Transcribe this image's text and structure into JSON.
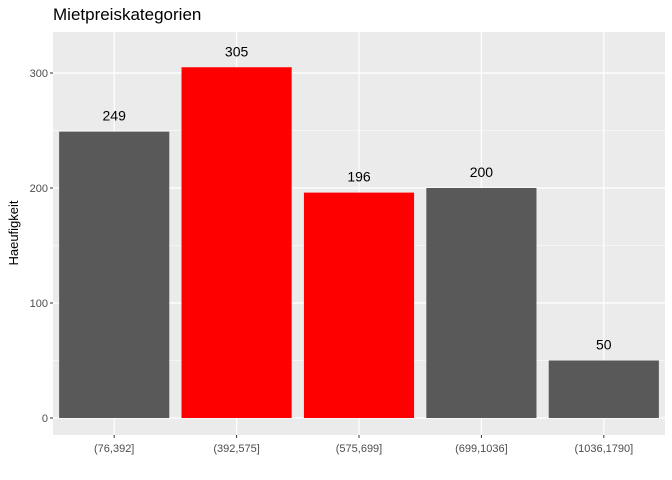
{
  "chart_data": {
    "type": "bar",
    "title": "Mietpreiskategorien",
    "xlabel": "",
    "ylabel": "Haeufigkeit",
    "categories": [
      "(76,392]",
      "(392,575]",
      "(575,699]",
      "(699,1036]",
      "(1036,1790]"
    ],
    "values": [
      249,
      305,
      196,
      200,
      50
    ],
    "bar_colors": [
      "#595959",
      "#ff0000",
      "#ff0000",
      "#595959",
      "#595959"
    ],
    "ylim": [
      0,
      330
    ],
    "yticks": [
      0,
      100,
      200,
      300
    ],
    "grid": true,
    "panel_background": "#ebebeb",
    "grid_color": "#ffffff"
  }
}
